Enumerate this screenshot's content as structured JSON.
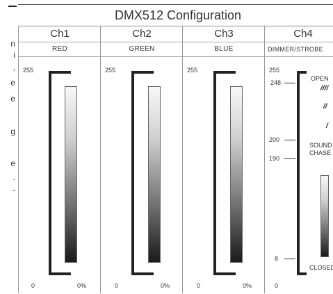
{
  "side_text": [
    "n",
    "i",
    ",",
    "e",
    "e",
    "g",
    "e",
    ".",
    "-"
  ],
  "title": "DMX512 Configuration",
  "channels": [
    {
      "name": "Ch1",
      "label": "RED",
      "max": "255",
      "min": "0",
      "pct": "0%"
    },
    {
      "name": "Ch2",
      "label": "GREEN",
      "max": "255",
      "min": "0",
      "pct": "0%"
    },
    {
      "name": "Ch3",
      "label": "BLUE",
      "max": "255",
      "min": "0",
      "pct": "0%"
    },
    {
      "name": "Ch4",
      "label": "DIMMER/STROBE",
      "max": "255",
      "min": "0"
    }
  ],
  "ch4": {
    "v248": "248",
    "v200": "200",
    "v190": "190",
    "v8": "8",
    "open": "OPEN",
    "sound1": "SOUND",
    "sound2": "CHASE",
    "closed": "CLOSED",
    "strobe_marks": [
      "////",
      "//",
      "/"
    ]
  }
}
